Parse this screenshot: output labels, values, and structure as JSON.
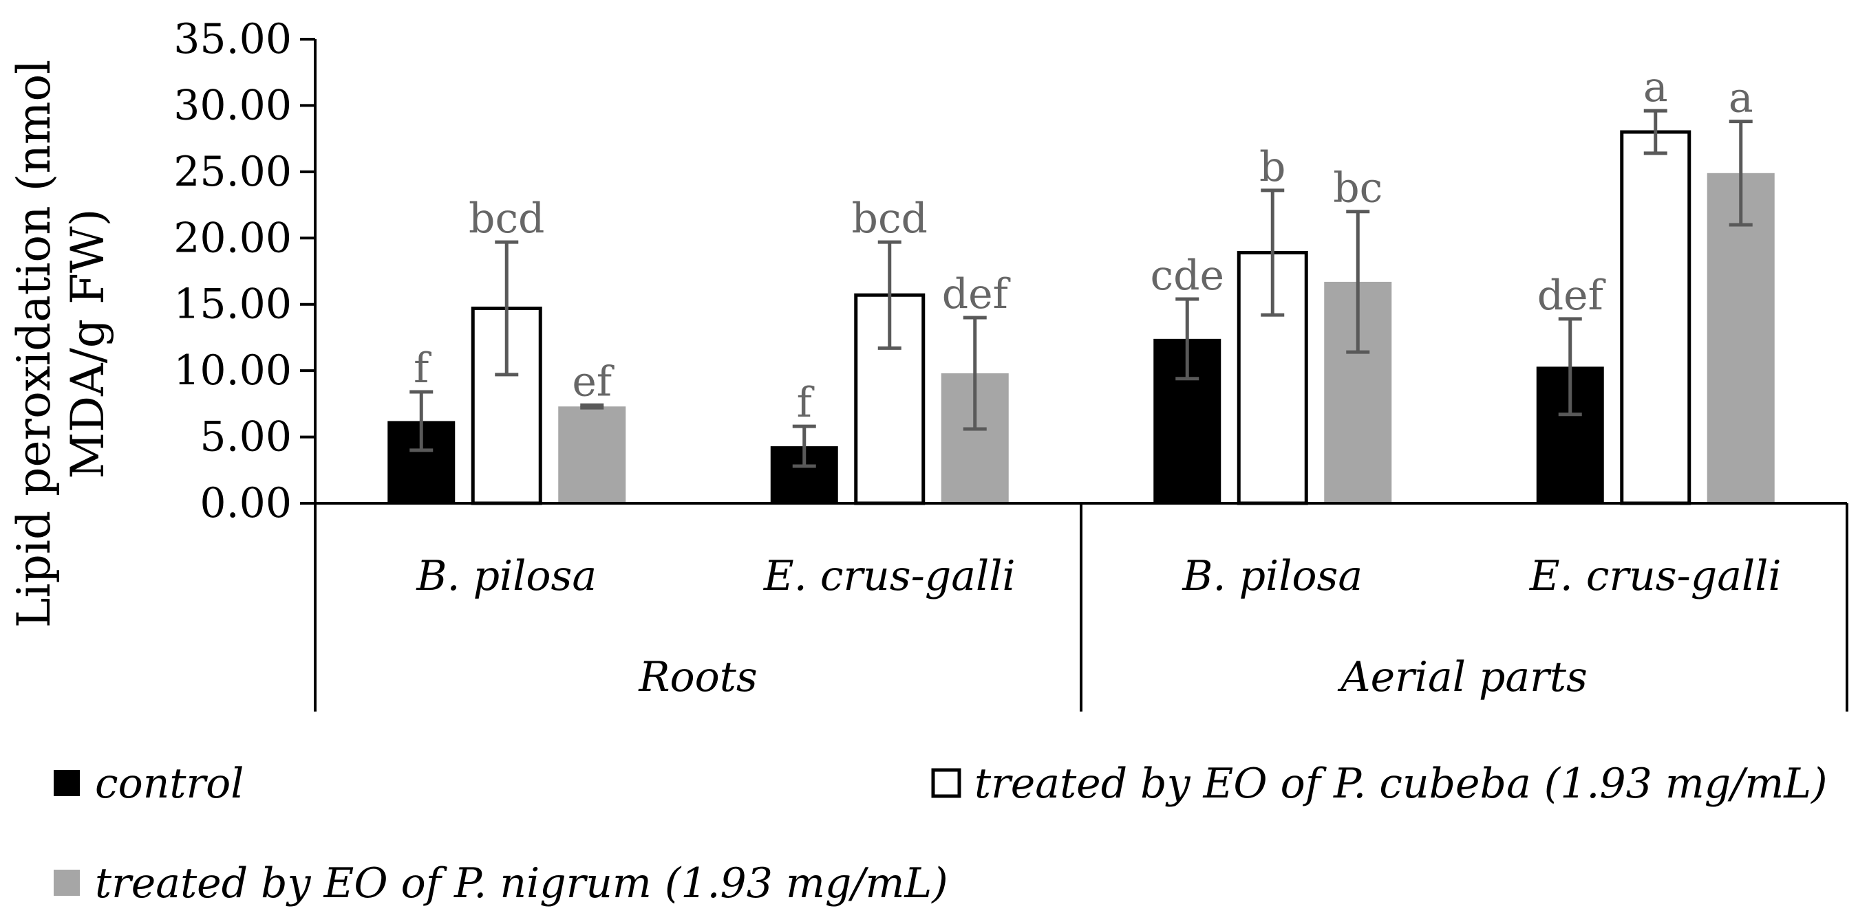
{
  "chart_data": {
    "type": "bar",
    "ylabel_line1": "Lipid peroxidation (nmol",
    "ylabel_line2": "MDA/g FW)",
    "ylim": [
      0,
      35
    ],
    "yticks": [
      "0.00",
      "5.00",
      "10.00",
      "15.00",
      "20.00",
      "25.00",
      "30.00",
      "35.00"
    ],
    "groups": [
      {
        "name": "Roots",
        "categories": [
          "B. pilosa",
          "E. crus-galli"
        ]
      },
      {
        "name": "Aerial parts",
        "categories": [
          "B. pilosa",
          "E. crus-galli"
        ]
      }
    ],
    "categories": [
      "B. pilosa",
      "E. crus-galli",
      "B. pilosa",
      "E. crus-galli"
    ],
    "series": [
      {
        "name": "control",
        "color": "#000000",
        "values": [
          6.2,
          4.3,
          12.4,
          10.3
        ],
        "errors": [
          2.2,
          1.5,
          3.0,
          3.6
        ],
        "labels": [
          "f",
          "f",
          "cde",
          "def"
        ]
      },
      {
        "name": "treated by EO of P. cubeba (1.93 mg/mL)",
        "color": "#ffffff",
        "values": [
          14.7,
          15.7,
          18.9,
          28.0
        ],
        "errors": [
          5.0,
          4.0,
          4.7,
          1.6
        ],
        "labels": [
          "bcd",
          "bcd",
          "b",
          "a"
        ]
      },
      {
        "name": "treated by EO of P. nigrum (1.93 mg/mL)",
        "color": "#a6a6a6",
        "values": [
          7.3,
          9.8,
          16.7,
          24.9
        ],
        "errors": [
          0.1,
          4.2,
          5.3,
          3.9
        ],
        "labels": [
          "ef",
          "def",
          "bc",
          "a"
        ]
      }
    ]
  }
}
